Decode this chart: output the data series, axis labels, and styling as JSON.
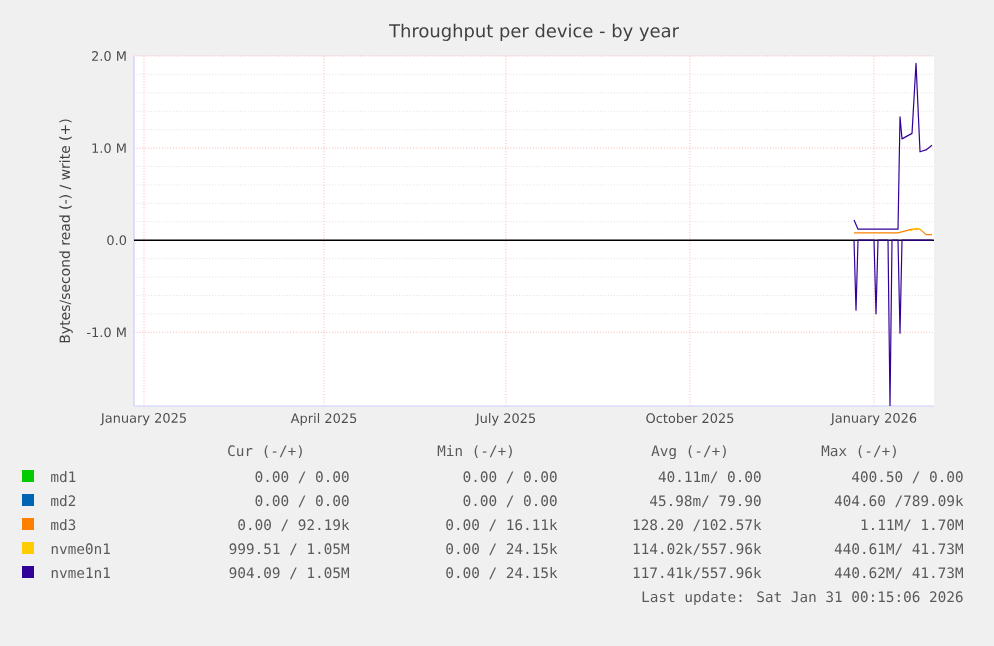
{
  "chart_data": {
    "type": "line",
    "title": "Throughput per device - by year",
    "ylabel": "Bytes/second read (-) / write (+)",
    "xlim": [
      "2024-12-27",
      "2026-01-31"
    ],
    "xticks": [
      {
        "value": "2025-01-01",
        "label": "January 2025"
      },
      {
        "value": "2025-04-01",
        "label": "April 2025"
      },
      {
        "value": "2025-07-01",
        "label": "July 2025"
      },
      {
        "value": "2025-10-01",
        "label": "October 2025"
      },
      {
        "value": "2026-01-01",
        "label": "January 2026"
      }
    ],
    "ylim": [
      -1800000,
      2000000
    ],
    "yticks": [
      {
        "value": -1000000,
        "label": "-1.0 M"
      },
      {
        "value": 0,
        "label": "0.0"
      },
      {
        "value": 1000000,
        "label": "1.0 M"
      },
      {
        "value": 2000000,
        "label": "2.0 M"
      }
    ],
    "grid": true,
    "legend": "bottom",
    "marker": "none",
    "line_style": "solid",
    "ref_lines": [
      {
        "axis": "y",
        "value": 0,
        "color": "#000000"
      }
    ],
    "series": [
      {
        "name": "md1",
        "color": "#00cc00"
      },
      {
        "name": "md2",
        "color": "#0066b3"
      },
      {
        "name": "md3",
        "color": "#ff8000",
        "x": [
          "2025-12-22",
          "2026-01-13",
          "2026-01-20",
          "2026-01-24",
          "2026-01-27",
          "2026-01-30"
        ],
        "values": [
          80000,
          80000,
          120000,
          120000,
          60000,
          60000
        ]
      },
      {
        "name": "nvme0n1",
        "color": "#ffcc00",
        "x": [
          "2026-01-19",
          "2026-01-22",
          "2026-01-25"
        ],
        "values": [
          100000,
          130000,
          110000
        ]
      },
      {
        "name": "nvme1n1",
        "color": "#330099",
        "x": [
          "2025-12-22",
          "2025-12-24",
          "2026-01-02",
          "2026-01-13",
          "2026-01-14",
          "2026-01-15",
          "2026-01-20",
          "2026-01-22",
          "2026-01-24",
          "2026-01-27",
          "2026-01-30"
        ],
        "values": [
          220000,
          120000,
          120000,
          120000,
          1340000,
          1100000,
          1160000,
          1920000,
          960000,
          980000,
          1030000
        ]
      },
      {
        "color": "#330099",
        "x": [
          "2025-12-22",
          "2025-12-23",
          "2025-12-24",
          "2026-01-01",
          "2026-01-02",
          "2026-01-03",
          "2026-01-08",
          "2026-01-09",
          "2026-01-10",
          "2026-01-13",
          "2026-01-14",
          "2026-01-15",
          "2026-01-30"
        ],
        "values": [
          0,
          -760000,
          0,
          0,
          -800000,
          0,
          0,
          -1800000,
          0,
          0,
          -1010000,
          0,
          0
        ]
      }
    ],
    "annotations": [
      "Cur (-/+)",
      "Min (-/+)",
      "Avg (-/+)",
      "Max (-/+)",
      "0.00 /  0.00",
      "0.00 /  0.00",
      "40.11m/  0.00",
      "400.50 /  0.00",
      "0.00 /  0.00",
      "0.00 /  0.00",
      "45.98m/ 79.90",
      "404.60 /789.09k",
      "0.00 / 92.19k",
      "0.00 / 16.11k",
      "128.20 /102.57k",
      "1.11M/  1.70M",
      "999.51 /  1.05M",
      "0.00 / 24.15k",
      "114.02k/557.96k",
      "440.61M/ 41.73M",
      "904.09 /  1.05M",
      "0.00 / 24.15k",
      "117.41k/557.96k",
      "440.62M/ 41.73M",
      "Last update: Sat Jan 31 00:15:06 2026"
    ]
  }
}
